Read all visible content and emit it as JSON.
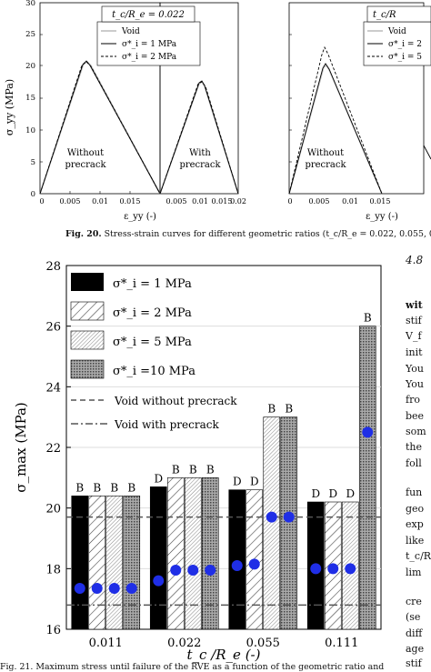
{
  "top_figure": {
    "label_ratio_left": "t_c/R_e = 0.022",
    "label_ratio_right": "t_c/R",
    "y_axis_label": "σ_yy (MPa)",
    "x_axis_label": "ε_yy (-)",
    "y_ticks": [
      "0",
      "5",
      "10",
      "15",
      "20",
      "25",
      "30"
    ],
    "x_ticks_left": [
      "0",
      "0.005",
      "0.01",
      "0.015"
    ],
    "x_ticks_right": [
      "0.005",
      "0.01",
      "0.015",
      "0.02"
    ],
    "x_ticks_mid_right": [
      "0.005",
      "0.01",
      "0.015",
      "0.02"
    ],
    "x_ticks_mid_left": [
      "0",
      "0.005",
      "0.01",
      "0.015"
    ],
    "legend_left": [
      "Void",
      "σ*_i = 1 MPa",
      "σ*_i = 2 MPa"
    ],
    "legend_right": [
      "Void",
      "σ*_i = 2",
      "σ*_i = 5"
    ],
    "panel_text_without": [
      "Without",
      "precrack"
    ],
    "panel_text_with": [
      "With",
      "precrack"
    ]
  },
  "fig20_caption": {
    "prefix": "Fig. 20.",
    "text": "Stress-strain curves for different geometric ratios (t_c/R_e = 0.022, 0.055, 0"
  },
  "chart_data": {
    "type": "bar",
    "categories": [
      "0.011",
      "0.022",
      "0.055",
      "0.111"
    ],
    "xlabel": "t_c /R_e (-)",
    "ylabel": "σ_max (MPa)",
    "ylim": [
      16,
      28
    ],
    "y_ticks": [
      16,
      18,
      20,
      22,
      24,
      26,
      28
    ],
    "series": [
      {
        "name": "σ*_i = 1 MPa",
        "pattern": "solid-black",
        "values": [
          20.4,
          20.7,
          20.6,
          20.2
        ],
        "letters": [
          "B",
          "D",
          "D",
          "D"
        ],
        "points": [
          17.35,
          17.6,
          18.1,
          18.0
        ]
      },
      {
        "name": "σ*_i = 2 MPa",
        "pattern": "diagonal-hatch",
        "values": [
          20.4,
          21.0,
          20.6,
          20.2
        ],
        "letters": [
          "B",
          "B",
          "D",
          "D"
        ],
        "points": [
          17.35,
          17.95,
          18.15,
          18.0
        ]
      },
      {
        "name": "σ*_i = 5 MPa",
        "pattern": "dense-lines",
        "values": [
          20.4,
          21.0,
          23.0,
          20.2
        ],
        "letters": [
          "B",
          "B",
          "B",
          "D"
        ],
        "points": [
          17.35,
          17.95,
          19.7,
          18.0
        ]
      },
      {
        "name": "σ*_i =10 MPa",
        "pattern": "dot-grid",
        "values": [
          20.4,
          21.0,
          23.0,
          26.0
        ],
        "letters": [
          "B",
          "B",
          "B",
          "B"
        ],
        "points": [
          17.35,
          17.95,
          19.7,
          22.5
        ]
      }
    ],
    "reference_lines": [
      {
        "name": "Void without precrack",
        "style": "dashed",
        "value": 19.7
      },
      {
        "name": "Void with precrack",
        "style": "dash-dot",
        "value": 16.8
      }
    ],
    "legend": {
      "entries": [
        "σ*_i = 1 MPa",
        "σ*_i = 2 MPa",
        "σ*_i = 5 MPa",
        "σ*_i =10 MPa",
        "Void without precrack",
        "Void with precrack"
      ],
      "placement": "top-left"
    },
    "point_color": "#1f2ee6"
  },
  "fig21_caption": {
    "text": "Fig. 21.  Maximum stress until failure of the RVE as a function of the geometric ratio and"
  },
  "right_column": {
    "lines": [
      "4.8",
      "",
      "wit",
      "stif",
      "V_f",
      "init",
      "You",
      "You",
      "fro",
      "bee",
      "som",
      "the",
      "foll",
      "",
      "fun",
      "geo",
      "exp",
      "like",
      "t_c/R",
      "lim",
      "",
      "cre",
      "(se",
      "diff",
      "age",
      "stif"
    ]
  }
}
